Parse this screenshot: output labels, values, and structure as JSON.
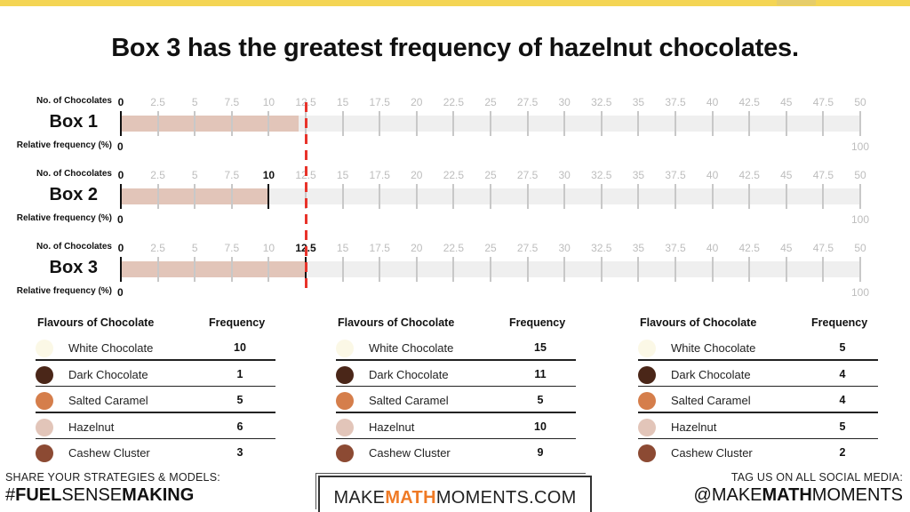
{
  "header": {
    "title": "Box 3 has the greatest frequency of hazelnut chocolates."
  },
  "axis": {
    "top_label": "No. of Chocolates",
    "bottom_label": "Relative frequency (%)",
    "ticks": [
      "0",
      "2.5",
      "5",
      "7.5",
      "10",
      "12.5",
      "15",
      "17.5",
      "20",
      "22.5",
      "25",
      "27.5",
      "30",
      "32.5",
      "35",
      "37.5",
      "40",
      "42.5",
      "45",
      "47.5",
      "50"
    ],
    "pct_start": "0",
    "pct_end": "100"
  },
  "boxes": [
    {
      "name": "Box 1",
      "hazelnut_value": 12,
      "highlight_tick": null
    },
    {
      "name": "Box 2",
      "hazelnut_value": 10,
      "highlight_tick": "10"
    },
    {
      "name": "Box 3",
      "hazelnut_value": 12.5,
      "highlight_tick": "12.5"
    }
  ],
  "reference_line": {
    "value": 12.5,
    "color": "#e8332a"
  },
  "tables": [
    {
      "header_flavour": "Flavours of Chocolate",
      "header_freq": "Frequency",
      "rows": [
        {
          "flavour": "White Chocolate",
          "freq": "10",
          "color": "#fbf8e6"
        },
        {
          "flavour": "Dark Chocolate",
          "freq": "1",
          "color": "#4a2618"
        },
        {
          "flavour": "Salted Caramel",
          "freq": "5",
          "color": "#d57e4b"
        },
        {
          "flavour": "Hazelnut",
          "freq": "6",
          "color": "#e2c5b9"
        },
        {
          "flavour": "Cashew Cluster",
          "freq": "3",
          "color": "#8c4a33"
        }
      ]
    },
    {
      "header_flavour": "Flavours of Chocolate",
      "header_freq": "Frequency",
      "rows": [
        {
          "flavour": "White Chocolate",
          "freq": "15",
          "color": "#fbf8e6"
        },
        {
          "flavour": "Dark Chocolate",
          "freq": "11",
          "color": "#4a2618"
        },
        {
          "flavour": "Salted Caramel",
          "freq": "5",
          "color": "#d57e4b"
        },
        {
          "flavour": "Hazelnut",
          "freq": "10",
          "color": "#e2c5b9"
        },
        {
          "flavour": "Cashew Cluster",
          "freq": "9",
          "color": "#8c4a33"
        }
      ]
    },
    {
      "header_flavour": "Flavours of Chocolate",
      "header_freq": "Frequency",
      "rows": [
        {
          "flavour": "White Chocolate",
          "freq": "5",
          "color": "#fbf8e6"
        },
        {
          "flavour": "Dark Chocolate",
          "freq": "4",
          "color": "#4a2618"
        },
        {
          "flavour": "Salted Caramel",
          "freq": "4",
          "color": "#d57e4b"
        },
        {
          "flavour": "Hazelnut",
          "freq": "5",
          "color": "#e2c5b9"
        },
        {
          "flavour": "Cashew Cluster",
          "freq": "2",
          "color": "#8c4a33"
        }
      ]
    }
  ],
  "footer": {
    "left_line1": "SHARE YOUR STRATEGIES & MODELS:",
    "left_hash": "#",
    "left_bold1": "FUEL",
    "left_normal": "SENSE",
    "left_bold2": "MAKING",
    "brand_pre": "MAKE",
    "brand_accent": "MATH",
    "brand_post": "MOMENTS.COM",
    "right_line1": "TAG US ON ALL SOCIAL MEDIA:",
    "right_pre": "@MAKE",
    "right_bold": "MATH",
    "right_post": "MOMENTS"
  },
  "colors": {
    "topbar": "#f4d554",
    "hazelnut_bar": "#e2c5b9",
    "track": "#efefef",
    "brand_accent": "#ef7a25"
  },
  "chart_data": {
    "type": "bar",
    "orientation": "horizontal",
    "title": "Box 3 has the greatest frequency of hazelnut chocolates.",
    "categories": [
      "Box 1",
      "Box 2",
      "Box 3"
    ],
    "values": [
      12,
      10,
      12.5
    ],
    "xlabel": "No. of Chocolates",
    "secondary_xlabel": "Relative frequency (%)",
    "xlim": [
      0,
      50
    ],
    "secondary_xlim": [
      0,
      100
    ],
    "x_ticks": [
      0,
      2.5,
      5,
      7.5,
      10,
      12.5,
      15,
      17.5,
      20,
      22.5,
      25,
      27.5,
      30,
      32.5,
      35,
      37.5,
      40,
      42.5,
      45,
      47.5,
      50
    ],
    "reference_line": 12.5,
    "grid": false,
    "tables": [
      {
        "box": "Box 1",
        "White Chocolate": 10,
        "Dark Chocolate": 1,
        "Salted Caramel": 5,
        "Hazelnut": 6,
        "Cashew Cluster": 3
      },
      {
        "box": "Box 2",
        "White Chocolate": 15,
        "Dark Chocolate": 11,
        "Salted Caramel": 5,
        "Hazelnut": 10,
        "Cashew Cluster": 9
      },
      {
        "box": "Box 3",
        "White Chocolate": 5,
        "Dark Chocolate": 4,
        "Salted Caramel": 4,
        "Hazelnut": 5,
        "Cashew Cluster": 2
      }
    ]
  }
}
